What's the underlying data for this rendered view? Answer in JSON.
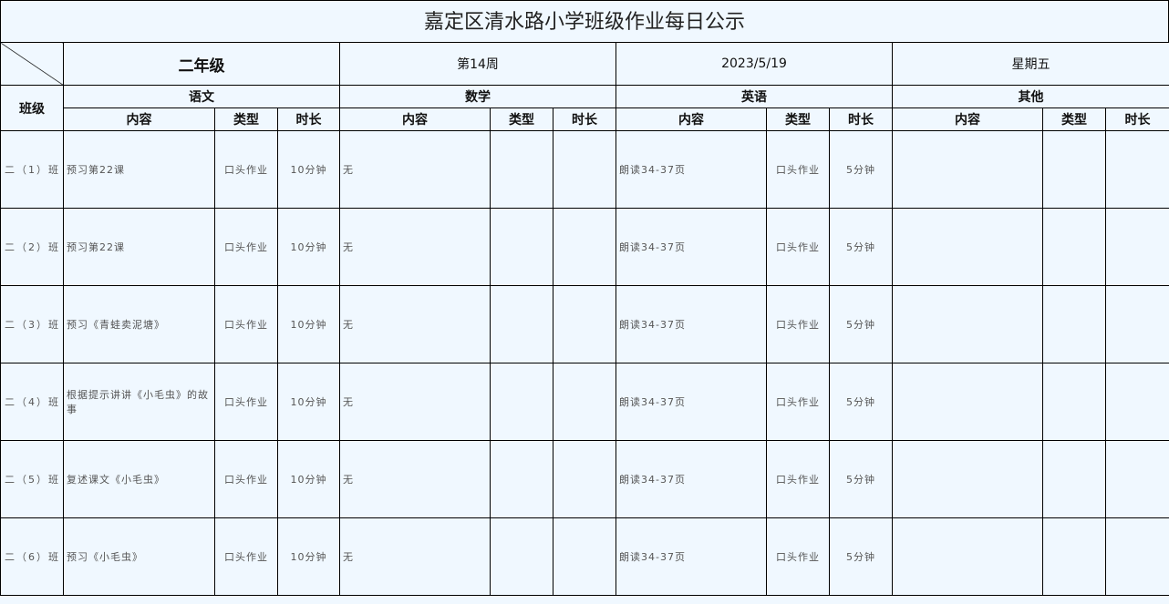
{
  "title": "嘉定区清水路小学班级作业每日公示",
  "header": {
    "grade": "二年级",
    "week": "第14周",
    "date": "2023/5/19",
    "weekday": "星期五",
    "class_label": "班级"
  },
  "subjects": [
    "语文",
    "数学",
    "英语",
    "其他"
  ],
  "columns": [
    "内容",
    "类型",
    "时长"
  ],
  "rows": [
    {
      "class": "二（1）班",
      "chinese": [
        "预习第22课",
        "口头作业",
        "10分钟"
      ],
      "math": [
        "无",
        "",
        ""
      ],
      "english": [
        "朗读34-37页",
        "口头作业",
        "5分钟"
      ],
      "other": [
        "",
        "",
        ""
      ]
    },
    {
      "class": "二（2）班",
      "chinese": [
        "预习第22课",
        "口头作业",
        "10分钟"
      ],
      "math": [
        "无",
        "",
        ""
      ],
      "english": [
        "朗读34-37页",
        "口头作业",
        "5分钟"
      ],
      "other": [
        "",
        "",
        ""
      ]
    },
    {
      "class": "二（3）班",
      "chinese": [
        "预习《青蛙卖泥塘》",
        "口头作业",
        "10分钟"
      ],
      "math": [
        "无",
        "",
        ""
      ],
      "english": [
        "朗读34-37页",
        "口头作业",
        "5分钟"
      ],
      "other": [
        "",
        "",
        ""
      ]
    },
    {
      "class": "二（4）班",
      "chinese": [
        "根据提示讲讲《小毛虫》的故事",
        "口头作业",
        "10分钟"
      ],
      "math": [
        "无",
        "",
        ""
      ],
      "english": [
        "朗读34-37页",
        "口头作业",
        "5分钟"
      ],
      "other": [
        "",
        "",
        ""
      ]
    },
    {
      "class": "二（5）班",
      "chinese": [
        "复述课文《小毛虫》",
        "口头作业",
        "10分钟"
      ],
      "math": [
        "无",
        "",
        ""
      ],
      "english": [
        "朗读34-37页",
        "口头作业",
        "5分钟"
      ],
      "other": [
        "",
        "",
        ""
      ]
    },
    {
      "class": "二（6）班",
      "chinese": [
        "预习《小毛虫》",
        "口头作业",
        "10分钟"
      ],
      "math": [
        "无",
        "",
        ""
      ],
      "english": [
        "朗读34-37页",
        "口头作业",
        "5分钟"
      ],
      "other": [
        "",
        "",
        ""
      ]
    }
  ]
}
